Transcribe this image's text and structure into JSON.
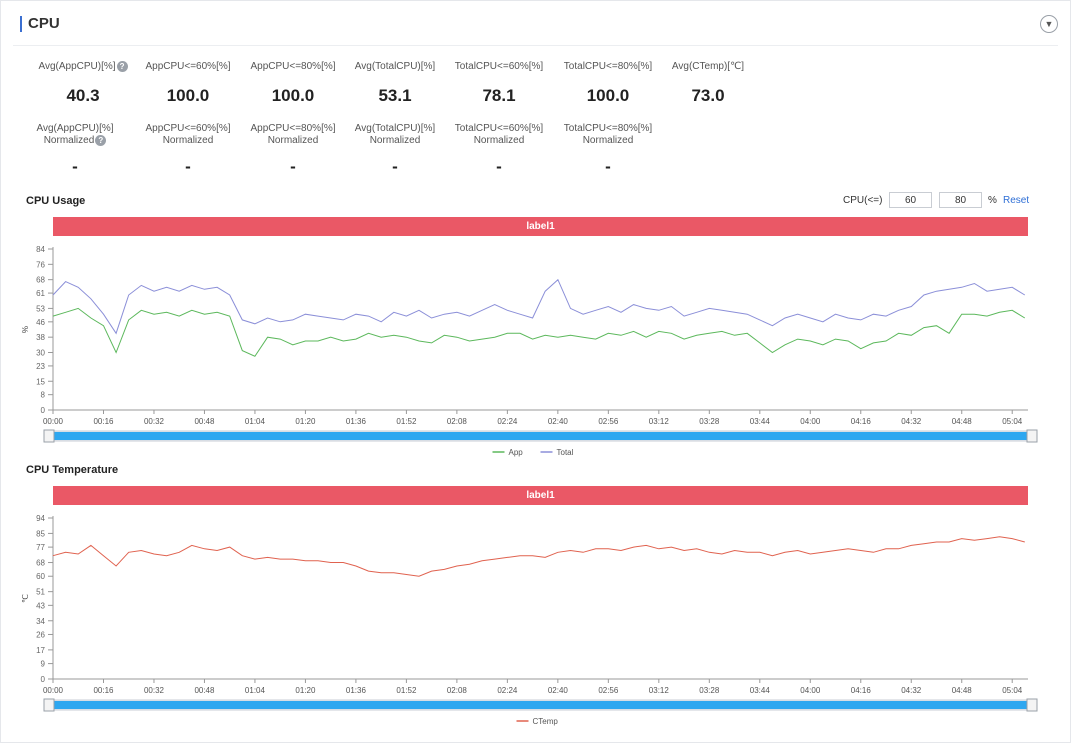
{
  "header": {
    "title": "CPU",
    "collapse_icon": "chevron-down-icon"
  },
  "metrics_row1": [
    {
      "label": "Avg(AppCPU)[%]",
      "help": true,
      "value": "40.3"
    },
    {
      "label": "AppCPU<=60%[%]",
      "help": false,
      "value": "100.0"
    },
    {
      "label": "AppCPU<=80%[%]",
      "help": false,
      "value": "100.0"
    },
    {
      "label": "Avg(TotalCPU)[%]",
      "help": false,
      "value": "53.1"
    },
    {
      "label": "TotalCPU<=60%[%]",
      "help": false,
      "value": "78.1"
    },
    {
      "label": "TotalCPU<=80%[%]",
      "help": false,
      "value": "100.0"
    },
    {
      "label": "Avg(CTemp)[℃]",
      "help": false,
      "value": "73.0"
    }
  ],
  "metrics_row2": [
    {
      "line1": "Avg(AppCPU)[%]",
      "line2": "Normalized",
      "help": true,
      "value": "-"
    },
    {
      "line1": "AppCPU<=60%[%]",
      "line2": "Normalized",
      "help": false,
      "value": "-"
    },
    {
      "line1": "AppCPU<=80%[%]",
      "line2": "Normalized",
      "help": false,
      "value": "-"
    },
    {
      "line1": "Avg(TotalCPU)[%]",
      "line2": "Normalized",
      "help": false,
      "value": "-"
    },
    {
      "line1": "TotalCPU<=60%[%]",
      "line2": "Normalized",
      "help": false,
      "value": "-"
    },
    {
      "line1": "TotalCPU<=80%[%]",
      "line2": "Normalized",
      "help": false,
      "value": "-"
    }
  ],
  "help_glyph": "?",
  "cpu_usage": {
    "title": "CPU Usage",
    "control_label": "CPU(<=)",
    "threshold_low": "60",
    "threshold_high": "80",
    "unit": "%",
    "reset_label": "Reset",
    "label_bar": "label1"
  },
  "cpu_temp": {
    "title": "CPU Temperature",
    "label_bar": "label1"
  },
  "chart_data": [
    {
      "type": "line",
      "title": "CPU Usage",
      "xlabel": "",
      "ylabel": "%",
      "ylim": [
        0,
        84
      ],
      "yticks": [
        0,
        8,
        15,
        23,
        30,
        38,
        46,
        53,
        61,
        68,
        76,
        84
      ],
      "xticks": [
        "00:00",
        "00:16",
        "00:32",
        "00:48",
        "01:04",
        "01:20",
        "01:36",
        "01:52",
        "02:08",
        "02:24",
        "02:40",
        "02:56",
        "03:12",
        "03:28",
        "03:44",
        "04:00",
        "04:16",
        "04:32",
        "04:48",
        "05:04"
      ],
      "xmax_seconds": 309,
      "series": [
        {
          "name": "App",
          "color": "#5cb85c",
          "x": [
            0,
            4,
            8,
            12,
            16,
            20,
            24,
            28,
            32,
            36,
            40,
            44,
            48,
            52,
            56,
            60,
            64,
            68,
            72,
            76,
            80,
            84,
            88,
            92,
            96,
            100,
            104,
            108,
            112,
            116,
            120,
            124,
            128,
            132,
            136,
            140,
            144,
            148,
            152,
            156,
            160,
            164,
            168,
            172,
            176,
            180,
            184,
            188,
            192,
            196,
            200,
            204,
            208,
            212,
            216,
            220,
            224,
            228,
            232,
            236,
            240,
            244,
            248,
            252,
            256,
            260,
            264,
            268,
            272,
            276,
            280,
            284,
            288,
            292,
            296,
            300,
            304,
            308
          ],
          "values": [
            49,
            51,
            53,
            48,
            44,
            30,
            47,
            52,
            50,
            51,
            49,
            52,
            50,
            51,
            49,
            31,
            28,
            38,
            37,
            34,
            36,
            36,
            38,
            36,
            37,
            40,
            38,
            39,
            38,
            36,
            35,
            39,
            38,
            36,
            37,
            38,
            40,
            40,
            37,
            39,
            38,
            39,
            38,
            37,
            40,
            39,
            41,
            38,
            41,
            40,
            37,
            39,
            40,
            41,
            39,
            40,
            35,
            30,
            34,
            37,
            36,
            34,
            37,
            36,
            32,
            35,
            36,
            40,
            39,
            43,
            44,
            40,
            50,
            50,
            49,
            51,
            52,
            48
          ]
        },
        {
          "name": "Total",
          "color": "#8b8fd8",
          "x": [
            0,
            4,
            8,
            12,
            16,
            20,
            24,
            28,
            32,
            36,
            40,
            44,
            48,
            52,
            56,
            60,
            64,
            68,
            72,
            76,
            80,
            84,
            88,
            92,
            96,
            100,
            104,
            108,
            112,
            116,
            120,
            124,
            128,
            132,
            136,
            140,
            144,
            148,
            152,
            156,
            160,
            164,
            168,
            172,
            176,
            180,
            184,
            188,
            192,
            196,
            200,
            204,
            208,
            212,
            216,
            220,
            224,
            228,
            232,
            236,
            240,
            244,
            248,
            252,
            256,
            260,
            264,
            268,
            272,
            276,
            280,
            284,
            288,
            292,
            296,
            300,
            304,
            308
          ],
          "values": [
            60,
            67,
            64,
            58,
            50,
            40,
            60,
            65,
            62,
            64,
            62,
            65,
            63,
            64,
            60,
            47,
            45,
            48,
            46,
            47,
            50,
            49,
            48,
            47,
            50,
            49,
            46,
            51,
            49,
            52,
            48,
            50,
            51,
            49,
            52,
            55,
            52,
            50,
            48,
            62,
            68,
            53,
            50,
            52,
            54,
            51,
            55,
            53,
            52,
            54,
            49,
            51,
            53,
            52,
            51,
            50,
            47,
            44,
            48,
            50,
            48,
            46,
            50,
            48,
            47,
            50,
            49,
            52,
            54,
            60,
            62,
            63,
            64,
            66,
            62,
            63,
            64,
            60
          ]
        }
      ],
      "legend": [
        "App",
        "Total"
      ],
      "legend_position": "bottom"
    },
    {
      "type": "line",
      "title": "CPU Temperature",
      "xlabel": "",
      "ylabel": "℃",
      "ylim": [
        0,
        94
      ],
      "yticks": [
        0,
        9,
        17,
        26,
        34,
        43,
        51,
        60,
        68,
        77,
        85,
        94
      ],
      "xticks": [
        "00:00",
        "00:16",
        "00:32",
        "00:48",
        "01:04",
        "01:20",
        "01:36",
        "01:52",
        "02:08",
        "02:24",
        "02:40",
        "02:56",
        "03:12",
        "03:28",
        "03:44",
        "04:00",
        "04:16",
        "04:32",
        "04:48",
        "05:04"
      ],
      "xmax_seconds": 309,
      "series": [
        {
          "name": "CTemp",
          "color": "#e0624f",
          "x": [
            0,
            4,
            8,
            12,
            16,
            20,
            24,
            28,
            32,
            36,
            40,
            44,
            48,
            52,
            56,
            60,
            64,
            68,
            72,
            76,
            80,
            84,
            88,
            92,
            96,
            100,
            104,
            108,
            112,
            116,
            120,
            124,
            128,
            132,
            136,
            140,
            144,
            148,
            152,
            156,
            160,
            164,
            168,
            172,
            176,
            180,
            184,
            188,
            192,
            196,
            200,
            204,
            208,
            212,
            216,
            220,
            224,
            228,
            232,
            236,
            240,
            244,
            248,
            252,
            256,
            260,
            264,
            268,
            272,
            276,
            280,
            284,
            288,
            292,
            296,
            300,
            304,
            308
          ],
          "values": [
            72,
            74,
            73,
            78,
            72,
            66,
            74,
            75,
            73,
            72,
            74,
            78,
            76,
            75,
            77,
            72,
            70,
            71,
            70,
            70,
            69,
            69,
            68,
            68,
            66,
            63,
            62,
            62,
            61,
            60,
            63,
            64,
            66,
            67,
            69,
            70,
            71,
            72,
            72,
            71,
            74,
            75,
            74,
            76,
            76,
            75,
            77,
            78,
            76,
            77,
            75,
            76,
            74,
            73,
            75,
            74,
            74,
            72,
            74,
            75,
            73,
            74,
            75,
            76,
            75,
            74,
            76,
            76,
            78,
            79,
            80,
            80,
            82,
            81,
            82,
            83,
            82,
            80
          ]
        }
      ],
      "legend": [
        "CTemp"
      ],
      "legend_position": "bottom"
    }
  ]
}
